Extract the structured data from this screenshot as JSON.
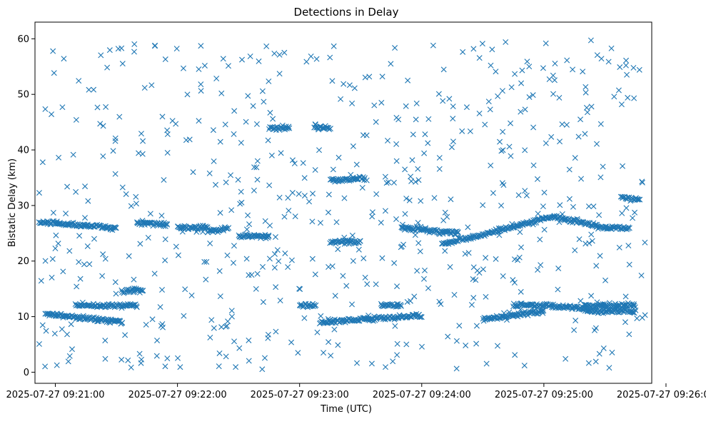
{
  "chart_data": {
    "type": "scatter",
    "title": "Detections in Delay",
    "xlabel": "Time (UTC)",
    "ylabel": "Bistatic Delay (km)",
    "marker": "x",
    "color": "#1f77b4",
    "grid": false,
    "legend": "none",
    "xlim": [
      "2025-07-27 09:20:50",
      "2025-07-27 09:25:53"
    ],
    "ylim": [
      -2,
      63
    ],
    "x_ticks": [
      "2025-07-27 09:21:00",
      "2025-07-27 09:22:00",
      "2025-07-27 09:23:00",
      "2025-07-27 09:24:00",
      "2025-07-27 09:25:00",
      "2025-07-27 09:26:00"
    ],
    "y_ticks": [
      "0",
      "10",
      "20",
      "30",
      "40",
      "50",
      "60"
    ],
    "tracks": [
      {
        "x": [
          "2025-07-27 09:20:52",
          "2025-07-27 09:21:30"
        ],
        "y": [
          27.0,
          26.0
        ]
      },
      {
        "x": [
          "2025-07-27 09:21:10",
          "2025-07-27 09:21:40"
        ],
        "y": [
          12.0,
          12.0
        ]
      },
      {
        "x": [
          "2025-07-27 09:20:55",
          "2025-07-27 09:21:33"
        ],
        "y": [
          10.5,
          9.0
        ]
      },
      {
        "x": [
          "2025-07-27 09:21:33",
          "2025-07-27 09:21:43"
        ],
        "y": [
          14.5,
          14.8
        ]
      },
      {
        "x": [
          "2025-07-27 09:21:40",
          "2025-07-27 09:21:55"
        ],
        "y": [
          27.0,
          26.5
        ]
      },
      {
        "x": [
          "2025-07-27 09:22:00",
          "2025-07-27 09:22:15"
        ],
        "y": [
          26.0,
          26.0
        ]
      },
      {
        "x": [
          "2025-07-27 09:22:15",
          "2025-07-27 09:22:25"
        ],
        "y": [
          25.5,
          25.8
        ]
      },
      {
        "x": [
          "2025-07-27 09:22:30",
          "2025-07-27 09:22:45"
        ],
        "y": [
          24.5,
          24.5
        ]
      },
      {
        "x": [
          "2025-07-27 09:22:45",
          "2025-07-27 09:22:55"
        ],
        "y": [
          44.0,
          44.0
        ]
      },
      {
        "x": [
          "2025-07-27 09:23:07",
          "2025-07-27 09:23:15"
        ],
        "y": [
          44.0,
          44.0
        ]
      },
      {
        "x": [
          "2025-07-27 09:23:15",
          "2025-07-27 09:23:32"
        ],
        "y": [
          34.5,
          35.0
        ]
      },
      {
        "x": [
          "2025-07-27 09:23:15",
          "2025-07-27 09:23:30"
        ],
        "y": [
          23.5,
          23.5
        ]
      },
      {
        "x": [
          "2025-07-27 09:23:00",
          "2025-07-27 09:23:08"
        ],
        "y": [
          12.0,
          12.0
        ]
      },
      {
        "x": [
          "2025-07-27 09:23:10",
          "2025-07-27 09:24:00"
        ],
        "y": [
          9.0,
          10.2
        ]
      },
      {
        "x": [
          "2025-07-27 09:23:40",
          "2025-07-27 09:23:50"
        ],
        "y": [
          12.0,
          12.0
        ]
      },
      {
        "x": [
          "2025-07-27 09:23:50",
          "2025-07-27 09:24:18"
        ],
        "y": [
          26.0,
          25.0
        ]
      },
      {
        "x": [
          "2025-07-27 09:24:10",
          "2025-07-27 09:25:05"
        ],
        "y": [
          23.0,
          28.0
        ]
      },
      {
        "x": [
          "2025-07-27 09:24:30",
          "2025-07-27 09:25:00"
        ],
        "y": [
          9.5,
          11.0
        ]
      },
      {
        "x": [
          "2025-07-27 09:24:45",
          "2025-07-27 09:25:00"
        ],
        "y": [
          12.0,
          12.0
        ]
      },
      {
        "x": [
          "2025-07-27 09:25:00",
          "2025-07-27 09:25:20"
        ],
        "y": [
          12.0,
          11.5
        ]
      },
      {
        "x": [
          "2025-07-27 09:25:20",
          "2025-07-27 09:25:45"
        ],
        "y": [
          12.0,
          12.0
        ]
      },
      {
        "x": [
          "2025-07-27 09:25:20",
          "2025-07-27 09:25:45"
        ],
        "y": [
          11.0,
          11.0
        ]
      },
      {
        "x": [
          "2025-07-27 09:25:05",
          "2025-07-27 09:25:30"
        ],
        "y": [
          28.0,
          26.0
        ]
      },
      {
        "x": [
          "2025-07-27 09:25:30",
          "2025-07-27 09:25:42"
        ],
        "y": [
          26.0,
          26.0
        ]
      },
      {
        "x": [
          "2025-07-27 09:25:38",
          "2025-07-27 09:25:47"
        ],
        "y": [
          31.5,
          31.0
        ]
      }
    ],
    "background_clutter": {
      "x_range": [
        "2025-07-27 09:20:52",
        "2025-07-27 09:25:50"
      ],
      "y_range": [
        0.5,
        60
      ],
      "count": 620
    }
  }
}
